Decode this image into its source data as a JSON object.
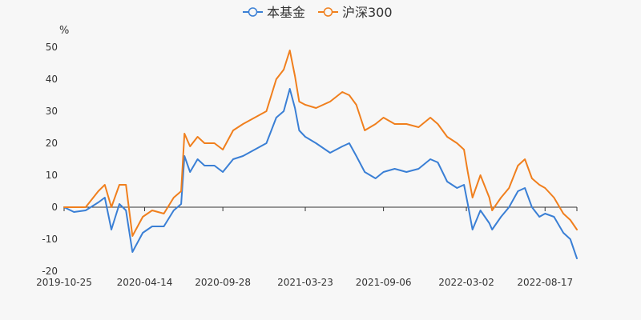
{
  "chart_data": {
    "type": "line",
    "ylabel": "%",
    "ylim": [
      -20,
      50
    ],
    "yticks": [
      -20,
      -10,
      0,
      10,
      20,
      30,
      40,
      50
    ],
    "x_range": [
      "2019-10-25",
      "2022-10-24"
    ],
    "xticks": [
      "2019-10-25",
      "2020-04-14",
      "2020-09-28",
      "2021-03-23",
      "2021-09-06",
      "2022-03-02",
      "2022-08-17"
    ],
    "grid": false,
    "legend": "top-center",
    "series": [
      {
        "name": "本基金",
        "color": "#3a7fd5",
        "points": [
          [
            "2019-10-25",
            0
          ],
          [
            "2019-11-15",
            -1.5
          ],
          [
            "2019-12-10",
            -1
          ],
          [
            "2020-01-06",
            1.5
          ],
          [
            "2020-01-20",
            3
          ],
          [
            "2020-02-03",
            -7
          ],
          [
            "2020-02-20",
            1
          ],
          [
            "2020-03-05",
            -1
          ],
          [
            "2020-03-19",
            -14
          ],
          [
            "2020-04-10",
            -8
          ],
          [
            "2020-04-30",
            -6
          ],
          [
            "2020-05-25",
            -6
          ],
          [
            "2020-06-15",
            -1
          ],
          [
            "2020-07-01",
            1
          ],
          [
            "2020-07-08",
            16
          ],
          [
            "2020-07-20",
            11
          ],
          [
            "2020-08-05",
            15
          ],
          [
            "2020-08-20",
            13
          ],
          [
            "2020-09-10",
            13
          ],
          [
            "2020-09-28",
            11
          ],
          [
            "2020-10-20",
            15
          ],
          [
            "2020-11-10",
            16
          ],
          [
            "2020-12-05",
            18
          ],
          [
            "2020-12-30",
            20
          ],
          [
            "2021-01-20",
            28
          ],
          [
            "2021-02-05",
            30
          ],
          [
            "2021-02-18",
            37
          ],
          [
            "2021-03-01",
            31
          ],
          [
            "2021-03-10",
            24
          ],
          [
            "2021-03-23",
            22
          ],
          [
            "2021-04-15",
            20
          ],
          [
            "2021-05-15",
            17
          ],
          [
            "2021-06-10",
            19
          ],
          [
            "2021-06-25",
            20
          ],
          [
            "2021-07-10",
            16
          ],
          [
            "2021-07-28",
            11
          ],
          [
            "2021-08-20",
            9
          ],
          [
            "2021-09-06",
            11
          ],
          [
            "2021-09-30",
            12
          ],
          [
            "2021-10-25",
            11
          ],
          [
            "2021-11-20",
            12
          ],
          [
            "2021-12-15",
            15
          ],
          [
            "2021-12-31",
            14
          ],
          [
            "2022-01-20",
            8
          ],
          [
            "2022-02-10",
            6
          ],
          [
            "2022-02-25",
            7
          ],
          [
            "2022-03-05",
            1
          ],
          [
            "2022-03-15",
            -7
          ],
          [
            "2022-04-01",
            -1
          ],
          [
            "2022-04-20",
            -5
          ],
          [
            "2022-04-26",
            -7
          ],
          [
            "2022-05-15",
            -3
          ],
          [
            "2022-06-01",
            0
          ],
          [
            "2022-06-20",
            5
          ],
          [
            "2022-07-05",
            6
          ],
          [
            "2022-07-20",
            0
          ],
          [
            "2022-08-05",
            -3
          ],
          [
            "2022-08-17",
            -2
          ],
          [
            "2022-09-05",
            -3
          ],
          [
            "2022-09-25",
            -8
          ],
          [
            "2022-10-10",
            -10
          ],
          [
            "2022-10-24",
            -16
          ]
        ]
      },
      {
        "name": "沪深300",
        "color": "#f07f1d",
        "points": [
          [
            "2019-10-25",
            0
          ],
          [
            "2019-11-15",
            0
          ],
          [
            "2019-12-10",
            0
          ],
          [
            "2020-01-06",
            5
          ],
          [
            "2020-01-20",
            7
          ],
          [
            "2020-02-03",
            0
          ],
          [
            "2020-02-20",
            7
          ],
          [
            "2020-03-05",
            7
          ],
          [
            "2020-03-19",
            -9
          ],
          [
            "2020-04-10",
            -3
          ],
          [
            "2020-04-30",
            -1
          ],
          [
            "2020-05-25",
            -2
          ],
          [
            "2020-06-15",
            3
          ],
          [
            "2020-07-01",
            5
          ],
          [
            "2020-07-08",
            23
          ],
          [
            "2020-07-20",
            19
          ],
          [
            "2020-08-05",
            22
          ],
          [
            "2020-08-20",
            20
          ],
          [
            "2020-09-10",
            20
          ],
          [
            "2020-09-28",
            18
          ],
          [
            "2020-10-20",
            24
          ],
          [
            "2020-11-10",
            26
          ],
          [
            "2020-12-05",
            28
          ],
          [
            "2020-12-30",
            30
          ],
          [
            "2021-01-20",
            40
          ],
          [
            "2021-02-05",
            43
          ],
          [
            "2021-02-18",
            49
          ],
          [
            "2021-03-01",
            41
          ],
          [
            "2021-03-10",
            33
          ],
          [
            "2021-03-23",
            32
          ],
          [
            "2021-04-15",
            31
          ],
          [
            "2021-05-15",
            33
          ],
          [
            "2021-06-10",
            36
          ],
          [
            "2021-06-25",
            35
          ],
          [
            "2021-07-10",
            32
          ],
          [
            "2021-07-28",
            24
          ],
          [
            "2021-08-20",
            26
          ],
          [
            "2021-09-06",
            28
          ],
          [
            "2021-09-30",
            26
          ],
          [
            "2021-10-25",
            26
          ],
          [
            "2021-11-20",
            25
          ],
          [
            "2021-12-15",
            28
          ],
          [
            "2021-12-31",
            26
          ],
          [
            "2022-01-20",
            22
          ],
          [
            "2022-02-10",
            20
          ],
          [
            "2022-02-25",
            18
          ],
          [
            "2022-03-05",
            11
          ],
          [
            "2022-03-15",
            3
          ],
          [
            "2022-04-01",
            10
          ],
          [
            "2022-04-20",
            3
          ],
          [
            "2022-04-26",
            -1
          ],
          [
            "2022-05-15",
            3
          ],
          [
            "2022-06-01",
            6
          ],
          [
            "2022-06-20",
            13
          ],
          [
            "2022-07-05",
            15
          ],
          [
            "2022-07-20",
            9
          ],
          [
            "2022-08-05",
            7
          ],
          [
            "2022-08-17",
            6
          ],
          [
            "2022-09-05",
            3
          ],
          [
            "2022-09-25",
            -2
          ],
          [
            "2022-10-10",
            -4
          ],
          [
            "2022-10-24",
            -7
          ]
        ]
      }
    ]
  }
}
